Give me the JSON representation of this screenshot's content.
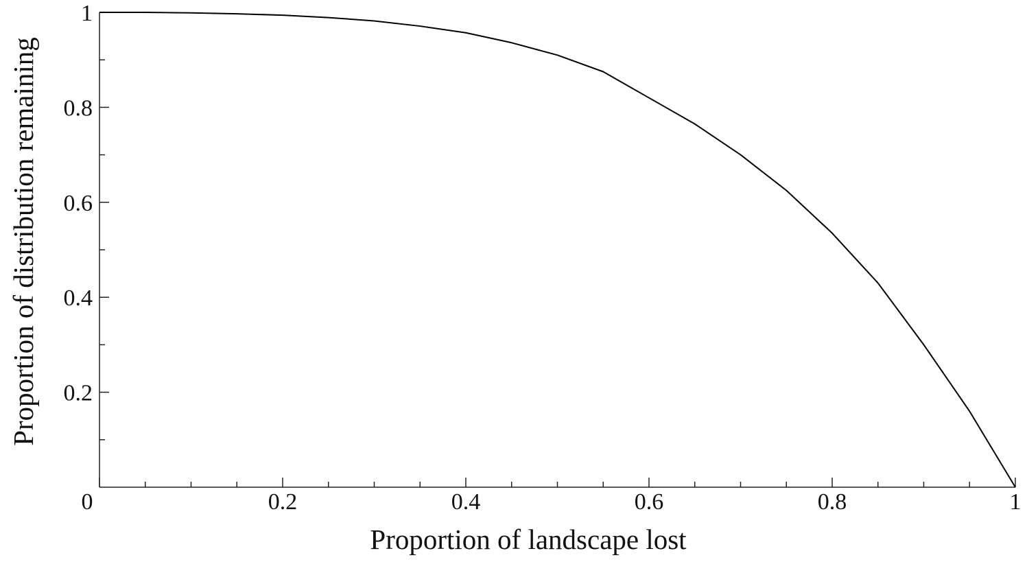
{
  "chart_data": {
    "type": "line",
    "x_label": "Proportion of landscape lost",
    "y_label": "Proportion of distribution remaining",
    "x": [
      0,
      0.05,
      0.1,
      0.15,
      0.2,
      0.25,
      0.3,
      0.35,
      0.4,
      0.45,
      0.5,
      0.55,
      0.6,
      0.65,
      0.7,
      0.75,
      0.8,
      0.85,
      0.9,
      0.95,
      1
    ],
    "series": [
      {
        "color": "#000000",
        "values": [
          1,
          1,
          0.999,
          0.997,
          0.994,
          0.989,
          0.982,
          0.971,
          0.957,
          0.936,
          0.91,
          0.875,
          0.82,
          0.765,
          0.7,
          0.625,
          0.535,
          0.43,
          0.3,
          0.16,
          0
        ]
      }
    ],
    "xlim": [
      0,
      1
    ],
    "ylim": [
      0,
      1
    ],
    "xticks": [
      0,
      0.2,
      0.4,
      0.6,
      0.8,
      1
    ],
    "yticks": [
      0.2,
      0.4,
      0.6,
      0.8,
      1
    ],
    "xminorticks": [
      0.05,
      0.1,
      0.15,
      0.25,
      0.3,
      0.35,
      0.45,
      0.5,
      0.55,
      0.65,
      0.7,
      0.75,
      0.85,
      0.9,
      0.95
    ],
    "yminorticks": [
      0.1,
      0.3,
      0.5,
      0.7,
      0.9
    ],
    "grid": false
  }
}
